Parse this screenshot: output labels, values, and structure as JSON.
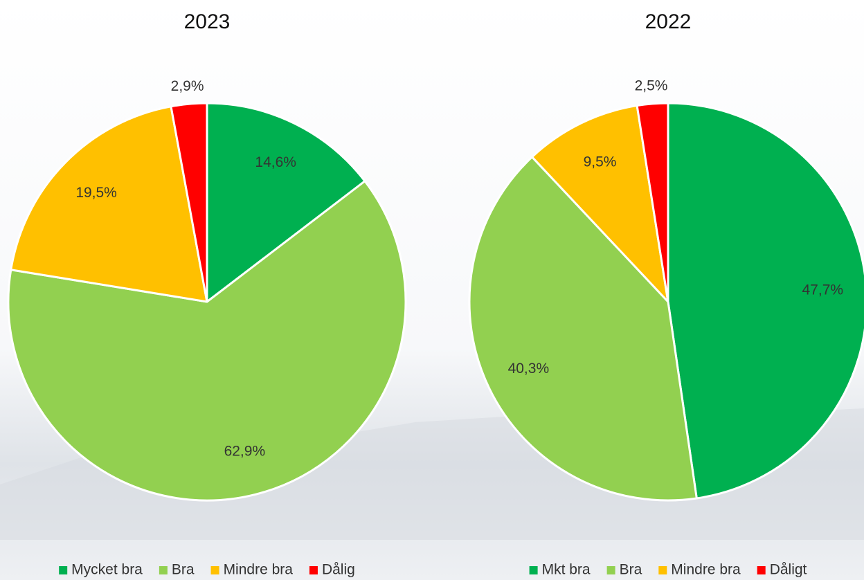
{
  "chart_data": [
    {
      "type": "pie",
      "title": "2023",
      "categories": [
        "Mycket bra",
        "Bra",
        "Mindre bra",
        "Dålig"
      ],
      "values": [
        14.6,
        62.9,
        19.5,
        2.9
      ],
      "value_labels": [
        "14,6%",
        "62,9%",
        "19,5%",
        "2,9%"
      ],
      "colors": [
        "#00b050",
        "#92d050",
        "#ffc000",
        "#ff0000"
      ],
      "legend": "bottom"
    },
    {
      "type": "pie",
      "title": "2022",
      "categories": [
        "Mkt bra",
        "Bra",
        "Mindre bra",
        "Dåligt"
      ],
      "values": [
        47.7,
        40.3,
        9.5,
        2.5
      ],
      "value_labels": [
        "47,7%",
        "40,3%",
        "9,5%",
        "2,5%"
      ],
      "colors": [
        "#00b050",
        "#92d050",
        "#ffc000",
        "#ff0000"
      ],
      "legend": "bottom"
    }
  ]
}
